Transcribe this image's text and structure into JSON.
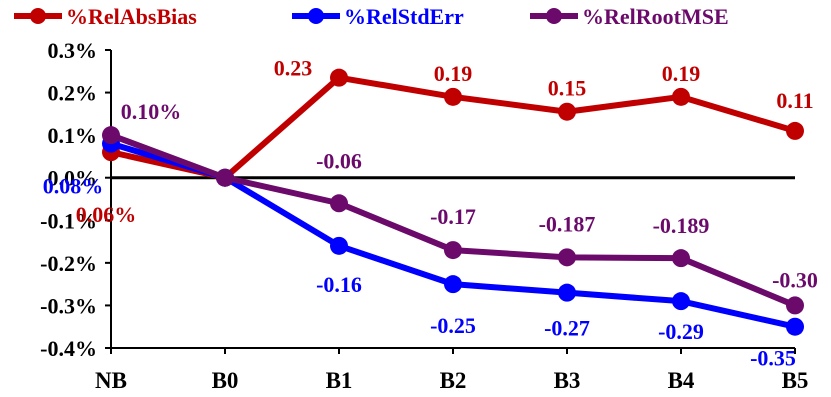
{
  "chart_data": {
    "type": "line",
    "title": "",
    "xlabel": "",
    "ylabel": "",
    "categories": [
      "NB",
      "B0",
      "B1",
      "B2",
      "B3",
      "B4",
      "B5"
    ],
    "ylim": [
      -0.4,
      0.3
    ],
    "yticks": [
      0.3,
      0.2,
      0.1,
      0.0,
      -0.1,
      -0.2,
      -0.3,
      -0.4
    ],
    "ytick_labels": [
      "0.3%",
      "0.2%",
      "0.1%",
      "0.0%",
      "-0.1%",
      "-0.2%",
      "-0.3%",
      "-0.4%"
    ],
    "grid": false,
    "legend_position": "top",
    "series": [
      {
        "name": "%RelAbsBias",
        "color": "#c00000",
        "values": [
          0.06,
          0.0,
          0.235,
          0.19,
          0.155,
          0.19,
          0.11
        ],
        "data_labels": [
          "0.06%",
          "",
          "0.23",
          "0.19",
          "0.15",
          "0.19",
          "0.11"
        ]
      },
      {
        "name": "%RelStdErr",
        "color": "#0000ff",
        "values": [
          0.08,
          0.0,
          -0.16,
          -0.25,
          -0.27,
          -0.29,
          -0.35
        ],
        "data_labels": [
          "0.08%",
          "",
          "-0.16",
          "-0.25",
          "-0.27",
          "-0.29",
          "-0.35"
        ]
      },
      {
        "name": "%RelRootMSE",
        "color": "#6b0a6b",
        "values": [
          0.1,
          0.0,
          -0.06,
          -0.17,
          -0.187,
          -0.189,
          -0.3
        ],
        "data_labels": [
          "0.10%",
          "",
          "-0.06",
          "-0.17",
          "-0.187",
          "-0.189",
          "-0.30"
        ]
      }
    ]
  }
}
